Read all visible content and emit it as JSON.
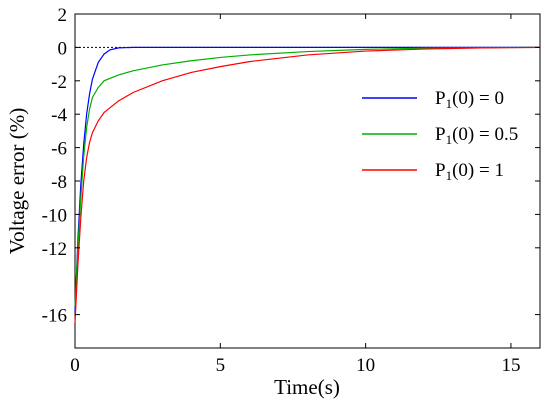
{
  "chart_data": {
    "type": "line",
    "title": "",
    "xlabel": "Time(s)",
    "ylabel": "Voltage error (%)",
    "xlim": [
      0,
      16
    ],
    "ylim": [
      -18,
      2
    ],
    "xticks": [
      0,
      5,
      10,
      15
    ],
    "yticks": [
      2,
      0,
      -2,
      -4,
      -6,
      -8,
      -10,
      -12,
      -16
    ],
    "reference_line": {
      "y": 0,
      "style": "dotted",
      "color": "#000000"
    },
    "legend": {
      "placement": "right",
      "frame": false
    },
    "series": [
      {
        "name": "P1(0) = 0",
        "label_main": "P",
        "label_sub": "1",
        "label_rest": "(0) = 0",
        "color": "#0000ff",
        "x": [
          0,
          0.1,
          0.2,
          0.3,
          0.4,
          0.5,
          0.6,
          0.8,
          1.0,
          1.2,
          1.5,
          2,
          4,
          8,
          16
        ],
        "y": [
          -15.8,
          -11.5,
          -8.2,
          -5.8,
          -4.0,
          -2.8,
          -1.9,
          -0.9,
          -0.4,
          -0.15,
          -0.03,
          0,
          0,
          0,
          0
        ]
      },
      {
        "name": "P1(0) = 0.5",
        "label_main": "P",
        "label_sub": "1",
        "label_rest": "(0) = 0.5",
        "color": "#00b000",
        "x": [
          0,
          0.1,
          0.2,
          0.3,
          0.4,
          0.5,
          0.6,
          0.8,
          1.0,
          1.5,
          2,
          3,
          4,
          5,
          6,
          8,
          10,
          12,
          14,
          16
        ],
        "y": [
          -15.5,
          -12.0,
          -9.0,
          -6.5,
          -4.8,
          -3.7,
          -3.0,
          -2.4,
          -2.0,
          -1.65,
          -1.4,
          -1.05,
          -0.8,
          -0.6,
          -0.45,
          -0.25,
          -0.12,
          -0.05,
          -0.02,
          0
        ]
      },
      {
        "name": "P1(0) = 1",
        "label_main": "P",
        "label_sub": "1",
        "label_rest": "(0) = 1",
        "color": "#ff0000",
        "x": [
          0,
          0.1,
          0.2,
          0.3,
          0.4,
          0.5,
          0.6,
          0.8,
          1.0,
          1.5,
          2,
          3,
          4,
          5,
          6,
          8,
          10,
          12,
          14,
          16
        ],
        "y": [
          -16.5,
          -13.0,
          -10.2,
          -8.0,
          -6.6,
          -5.7,
          -5.1,
          -4.4,
          -3.9,
          -3.2,
          -2.7,
          -2.0,
          -1.5,
          -1.15,
          -0.85,
          -0.45,
          -0.22,
          -0.1,
          -0.03,
          0
        ]
      }
    ]
  }
}
